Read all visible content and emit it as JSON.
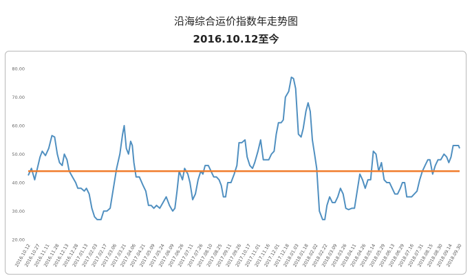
{
  "chart_data": {
    "type": "line",
    "title": "沿海综合运价指数年走势图",
    "subtitle": "2016.10.12至今",
    "ylim": [
      20,
      80
    ],
    "yticks": [
      "20.00",
      "30.00",
      "40.00",
      "50.00",
      "60.00",
      "70.00",
      "80.00"
    ],
    "grid": false,
    "categories": [
      "2016.10.12",
      "2016.10.27",
      "2016.11.11",
      "2016.11.28",
      "2016.12.13",
      "2016.12.28",
      "2017.01.13",
      "2017.02.03",
      "2017.02.17",
      "2017.03.06",
      "2017.03.21",
      "2017.04.06",
      "2017.04.21",
      "2017.05.09",
      "2017.05.24",
      "2017.06.09",
      "2017.06.26",
      "2017.07.11",
      "2017.07.26",
      "2017.08.10",
      "2017.08.25",
      "2017.09.11",
      "2017.09.26",
      "2017.10.17",
      "2017.11.01",
      "2017.11.16",
      "2017.12.01",
      "2017.12.18",
      "2018.01.03",
      "2018.01.18",
      "2018.02.02",
      "2018.02.22",
      "2018.03.09",
      "2018.03.26",
      "2018.04.11",
      "2018.04.26",
      "2018.05.14",
      "2018.05.29",
      "2018.06.13",
      "2018.06.29",
      "2018.07.16",
      "2018.07.31",
      "2018.08.15",
      "2018.08.30",
      "2018.09.14",
      "2018.09.30"
    ],
    "series": [
      {
        "color": "#4f8fc0",
        "points": [
          [
            0,
            42.5
          ],
          [
            0.6,
            45
          ],
          [
            1.2,
            41
          ],
          [
            2.2,
            49
          ],
          [
            2.6,
            51
          ],
          [
            3.2,
            49.5
          ],
          [
            3.8,
            52
          ],
          [
            4.4,
            56.5
          ],
          [
            4.9,
            56
          ],
          [
            5.4,
            50
          ],
          [
            5.8,
            47
          ],
          [
            6.3,
            46
          ],
          [
            6.7,
            50
          ],
          [
            7.2,
            48
          ],
          [
            7.6,
            44
          ],
          [
            8.2,
            42
          ],
          [
            8.8,
            40
          ],
          [
            9.2,
            38
          ],
          [
            9.8,
            38
          ],
          [
            10.4,
            37
          ],
          [
            10.8,
            38
          ],
          [
            11.3,
            36
          ],
          [
            11.8,
            31
          ],
          [
            12.3,
            28
          ],
          [
            12.8,
            27
          ],
          [
            13.5,
            27
          ],
          [
            14,
            30
          ],
          [
            14.6,
            30
          ],
          [
            15.2,
            31
          ],
          [
            15.8,
            38
          ],
          [
            16.4,
            45
          ],
          [
            17,
            50
          ],
          [
            17.5,
            57
          ],
          [
            17.8,
            60
          ],
          [
            18.2,
            52
          ],
          [
            18.6,
            50
          ],
          [
            19,
            54.5
          ],
          [
            19.3,
            53
          ],
          [
            19.6,
            47
          ],
          [
            20,
            42
          ],
          [
            20.6,
            42
          ],
          [
            21.3,
            39
          ],
          [
            21.8,
            37
          ],
          [
            22.3,
            32
          ],
          [
            22.8,
            32
          ],
          [
            23.3,
            31
          ],
          [
            23.8,
            32
          ],
          [
            24.4,
            31
          ],
          [
            25,
            33
          ],
          [
            25.6,
            35
          ],
          [
            26.2,
            32
          ],
          [
            26.8,
            30
          ],
          [
            27.2,
            31
          ],
          [
            27.6,
            37
          ],
          [
            28,
            44
          ],
          [
            28.6,
            41
          ],
          [
            29,
            45
          ],
          [
            29.6,
            43
          ],
          [
            30,
            40
          ],
          [
            30.5,
            34
          ],
          [
            31,
            36
          ],
          [
            31.5,
            41
          ],
          [
            32,
            44
          ],
          [
            32.4,
            43
          ],
          [
            32.8,
            46
          ],
          [
            33.4,
            46
          ],
          [
            33.9,
            44
          ],
          [
            34.4,
            42
          ],
          [
            34.9,
            42
          ],
          [
            35.4,
            41
          ],
          [
            35.8,
            39
          ],
          [
            36.2,
            35
          ],
          [
            36.6,
            35
          ],
          [
            37,
            40
          ],
          [
            37.6,
            40
          ],
          [
            38.2,
            43
          ],
          [
            38.7,
            46
          ],
          [
            39.1,
            54
          ],
          [
            39.6,
            54
          ],
          [
            40.2,
            55
          ],
          [
            40.6,
            49
          ],
          [
            41.1,
            46
          ],
          [
            41.6,
            45
          ],
          [
            42,
            47
          ],
          [
            42.6,
            51
          ],
          [
            43.1,
            55
          ],
          [
            43.6,
            48
          ],
          [
            44.1,
            48
          ],
          [
            44.6,
            48
          ],
          [
            45.1,
            50
          ],
          [
            45.6,
            51
          ],
          [
            46,
            57
          ],
          [
            46.4,
            61
          ],
          [
            46.9,
            61
          ],
          [
            47.3,
            62
          ],
          [
            47.7,
            70
          ],
          [
            48.3,
            72
          ],
          [
            48.8,
            77
          ],
          [
            49.2,
            76.5
          ],
          [
            49.6,
            73
          ],
          [
            50.1,
            57
          ],
          [
            50.6,
            56
          ],
          [
            51,
            59
          ],
          [
            51.5,
            65
          ],
          [
            51.9,
            68
          ],
          [
            52.3,
            65
          ],
          [
            52.7,
            55
          ],
          [
            53.1,
            50
          ],
          [
            53.5,
            45
          ],
          [
            54,
            30
          ],
          [
            54.6,
            27
          ],
          [
            55,
            27
          ],
          [
            55.4,
            32
          ],
          [
            55.9,
            35
          ],
          [
            56.4,
            33
          ],
          [
            56.9,
            33
          ],
          [
            57.4,
            35
          ],
          [
            57.9,
            38
          ],
          [
            58.4,
            36
          ],
          [
            58.9,
            31
          ],
          [
            59.4,
            30.5
          ],
          [
            60,
            31
          ],
          [
            60.5,
            31
          ],
          [
            61,
            37
          ],
          [
            61.5,
            43
          ],
          [
            62,
            41
          ],
          [
            62.5,
            38
          ],
          [
            63,
            41
          ],
          [
            63.5,
            41
          ],
          [
            64,
            51
          ],
          [
            64.5,
            50
          ],
          [
            65,
            44
          ],
          [
            65.5,
            47
          ],
          [
            66,
            41
          ],
          [
            66.5,
            40
          ],
          [
            67,
            40
          ],
          [
            67.5,
            38
          ],
          [
            68,
            36
          ],
          [
            68.5,
            36
          ],
          [
            69,
            38
          ],
          [
            69.4,
            40
          ],
          [
            69.8,
            40
          ],
          [
            70.2,
            35
          ],
          [
            70.6,
            35
          ],
          [
            71.1,
            35
          ],
          [
            71.6,
            36
          ],
          [
            72.1,
            37
          ],
          [
            72.6,
            41
          ],
          [
            73.1,
            44
          ],
          [
            73.6,
            46
          ],
          [
            74.1,
            48
          ],
          [
            74.5,
            48
          ],
          [
            75,
            43
          ],
          [
            75.5,
            46
          ],
          [
            76,
            48
          ],
          [
            76.5,
            48
          ],
          [
            77.1,
            50
          ],
          [
            77.6,
            49
          ],
          [
            78,
            47
          ],
          [
            78.4,
            49
          ],
          [
            78.8,
            53
          ],
          [
            79.3,
            53
          ],
          [
            79.8,
            53
          ],
          [
            80,
            52
          ]
        ]
      },
      {
        "color": "#f07b2a",
        "points": [
          [
            0,
            44
          ],
          [
            80,
            44
          ]
        ]
      }
    ]
  }
}
